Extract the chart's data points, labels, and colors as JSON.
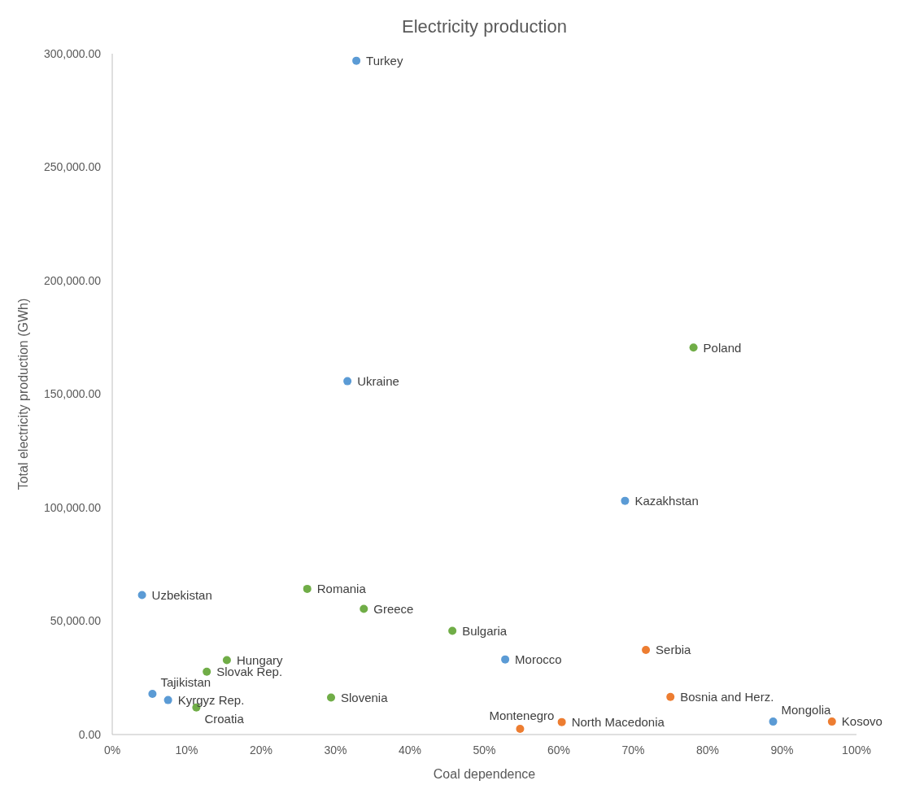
{
  "chart_data": {
    "type": "scatter",
    "title": "Electricity production",
    "xlabel": "Coal dependence",
    "ylabel": "Total electricity production (GWh)",
    "xlim": [
      0,
      100
    ],
    "xticks": [
      {
        "value": 0,
        "label": "0%"
      },
      {
        "value": 10,
        "label": "10%"
      },
      {
        "value": 20,
        "label": "20%"
      },
      {
        "value": 30,
        "label": "30%"
      },
      {
        "value": 40,
        "label": "40%"
      },
      {
        "value": 50,
        "label": "50%"
      },
      {
        "value": 60,
        "label": "60%"
      },
      {
        "value": 70,
        "label": "70%"
      },
      {
        "value": 80,
        "label": "80%"
      },
      {
        "value": 90,
        "label": "90%"
      },
      {
        "value": 100,
        "label": "100%"
      }
    ],
    "ylim": [
      0,
      300000
    ],
    "yticks": [
      {
        "value": 0,
        "label": "0.00"
      },
      {
        "value": 50000,
        "label": "50,000.00"
      },
      {
        "value": 100000,
        "label": "100,000.00"
      },
      {
        "value": 150000,
        "label": "150,000.00"
      },
      {
        "value": 200000,
        "label": "200,000.00"
      },
      {
        "value": 250000,
        "label": "250,000.00"
      },
      {
        "value": 300000,
        "label": "300,000.00"
      }
    ],
    "grid": false,
    "marker": "circle",
    "series": [
      {
        "color": "#5b9bd5",
        "x": [
          32.8,
          31.6,
          68.9,
          4.0,
          52.8,
          5.4,
          7.5,
          88.8
        ],
        "values": [
          296900,
          155700,
          103000,
          61500,
          33100,
          17900,
          15200,
          5700
        ]
      },
      {
        "color": "#ed7d31",
        "x": [
          71.7,
          75.0,
          60.4,
          54.8,
          96.7
        ],
        "values": [
          37300,
          16600,
          5500,
          2500,
          5700
        ]
      },
      {
        "color": "#70ad47",
        "x": [
          78.1,
          26.2,
          33.8,
          45.7,
          15.4,
          12.7,
          11.3,
          29.4
        ],
        "values": [
          170500,
          64200,
          55400,
          45700,
          32800,
          27700,
          11900,
          16300
        ]
      }
    ],
    "annotations": [
      {
        "text": "Turkey",
        "x": 32.8,
        "y": 296900
      },
      {
        "text": "Ukraine",
        "x": 31.6,
        "y": 155700
      },
      {
        "text": "Kazakhstan",
        "x": 68.9,
        "y": 103000
      },
      {
        "text": "Uzbekistan",
        "x": 4.0,
        "y": 61500
      },
      {
        "text": "Morocco",
        "x": 52.8,
        "y": 33100
      },
      {
        "text": "Tajikistan",
        "x": 5.4,
        "y": 17900
      },
      {
        "text": "Kyrgyz Rep.",
        "x": 7.5,
        "y": 15200
      },
      {
        "text": "Mongolia",
        "x": 88.8,
        "y": 5700
      },
      {
        "text": "Serbia",
        "x": 71.7,
        "y": 37300
      },
      {
        "text": "Bosnia and Herz.",
        "x": 75.0,
        "y": 16600
      },
      {
        "text": "North Macedonia",
        "x": 60.4,
        "y": 5500
      },
      {
        "text": "Montenegro",
        "x": 54.8,
        "y": 2500
      },
      {
        "text": "Kosovo",
        "x": 96.7,
        "y": 5700
      },
      {
        "text": "Poland",
        "x": 78.1,
        "y": 170500
      },
      {
        "text": "Romania",
        "x": 26.2,
        "y": 64200
      },
      {
        "text": "Greece",
        "x": 33.8,
        "y": 55400
      },
      {
        "text": "Bulgaria",
        "x": 45.7,
        "y": 45700
      },
      {
        "text": "Hungary",
        "x": 15.4,
        "y": 32800
      },
      {
        "text": "Slovak Rep.",
        "x": 12.7,
        "y": 27700
      },
      {
        "text": "Croatia",
        "x": 11.3,
        "y": 11900
      },
      {
        "text": "Slovenia",
        "x": 29.4,
        "y": 16300
      }
    ]
  }
}
